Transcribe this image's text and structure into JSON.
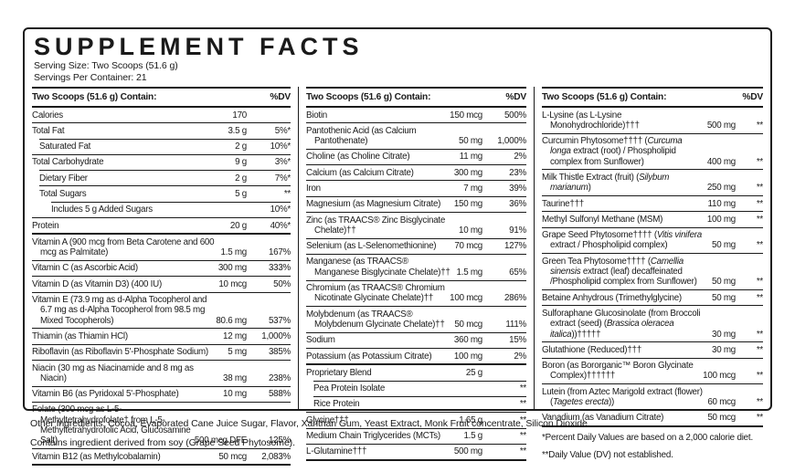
{
  "colors": {
    "ink": "#1a1a1a",
    "background": "#ffffff"
  },
  "header": {
    "title": "SUPPLEMENT FACTS",
    "serving_size": "Serving Size: Two Scoops (51.6 g)",
    "servings_per_container": "Servings Per Container: 21"
  },
  "columns": [
    {
      "header": "Two Scoops (51.6 g) Contain:",
      "dv_header": "%DV",
      "rows": [
        {
          "name": "Calories",
          "amount": "170",
          "dv": ""
        },
        {
          "name": "Total Fat",
          "amount": "3.5 g",
          "dv": "5%*"
        },
        {
          "name": "Saturated Fat",
          "amount": "2 g",
          "dv": "10%*",
          "indent": 1
        },
        {
          "name": "Total Carbohydrate",
          "amount": "9 g",
          "dv": "3%*"
        },
        {
          "name": "Dietary Fiber",
          "amount": "2 g",
          "dv": "7%*",
          "indent": 1
        },
        {
          "name": "Total Sugars",
          "amount": "5 g",
          "dv": "**",
          "indent": 1
        },
        {
          "name": "Includes 5 g Added Sugars",
          "amount": "",
          "dv": "10%*",
          "indent": 2
        },
        {
          "name": "Protein",
          "amount": "20 g",
          "dv": "40%*"
        },
        {
          "name": "Vitamin A (900 mcg from Beta Carotene and 600 mcg as Palmitate)",
          "amount": "1.5 mg",
          "dv": "167%",
          "sep": "thick"
        },
        {
          "name": "Vitamin C (as Ascorbic Acid)",
          "amount": "300 mg",
          "dv": "333%"
        },
        {
          "name": "Vitamin D (as Vitamin D3) (400 IU)",
          "amount": "10 mcg",
          "dv": "50%"
        },
        {
          "name": "Vitamin E (73.9 mg as d-Alpha Tocopherol and 6.7 mg as d-Alpha Tocopherol from 98.5 mg Mixed Tocopherols)",
          "amount": "80.6 mg",
          "dv": "537%"
        },
        {
          "name": "Thiamin (as Thiamin HCl)",
          "amount": "12 mg",
          "dv": "1,000%"
        },
        {
          "name": "Riboflavin (as Riboflavin 5'-Phosphate Sodium)",
          "amount": "5 mg",
          "dv": "385%"
        },
        {
          "name": "Niacin (30 mg as Niacinamide and 8 mg as Niacin)",
          "amount": "38 mg",
          "dv": "238%"
        },
        {
          "name": "Vitamin B6 (as Pyridoxal 5'-Phosphate)",
          "amount": "10 mg",
          "dv": "588%"
        },
        {
          "name": "Folate (300 mcg as L-5-Methyltetrahydrofolate† from L-5-Methyltetrahydrofolic Acid, Glucosamine Salt)",
          "amount": "500 mcg DFE",
          "dv": "125%"
        },
        {
          "name": "Vitamin B12 (as Methylcobalamin)",
          "amount": "50 mcg",
          "dv": "2,083%"
        }
      ]
    },
    {
      "header": "Two Scoops (51.6 g) Contain:",
      "dv_header": "%DV",
      "rows": [
        {
          "name": "Biotin",
          "amount": "150 mcg",
          "dv": "500%"
        },
        {
          "name": "Pantothenic Acid (as Calcium Pantothenate)",
          "amount": "50 mg",
          "dv": "1,000%"
        },
        {
          "name": "Choline (as Choline Citrate)",
          "amount": "11 mg",
          "dv": "2%"
        },
        {
          "name": "Calcium (as Calcium Citrate)",
          "amount": "300 mg",
          "dv": "23%"
        },
        {
          "name": "Iron",
          "amount": "7 mg",
          "dv": "39%"
        },
        {
          "name": "Magnesium (as Magnesium Citrate)",
          "amount": "150 mg",
          "dv": "36%"
        },
        {
          "name": "Zinc (as TRAACS® Zinc Bisglycinate Chelate)††",
          "amount": "10 mg",
          "dv": "91%"
        },
        {
          "name": "Selenium (as L-Selenomethionine)",
          "amount": "70 mcg",
          "dv": "127%"
        },
        {
          "name": "Manganese (as TRAACS® Manganese Bisglycinate Chelate)††",
          "amount": "1.5 mg",
          "dv": "65%"
        },
        {
          "name": "Chromium (as TRAACS® Chromium Nicotinate Glycinate Chelate)††",
          "amount": "100 mcg",
          "dv": "286%"
        },
        {
          "name": "Molybdenum (as TRAACS® Molybdenum Glycinate Chelate)††",
          "amount": "50 mcg",
          "dv": "111%"
        },
        {
          "name": "Sodium",
          "amount": "360 mg",
          "dv": "15%"
        },
        {
          "name": "Potassium (as Potassium Citrate)",
          "amount": "100 mg",
          "dv": "2%"
        },
        {
          "name": "Proprietary Blend",
          "amount": "25 g",
          "dv": "",
          "sep": "thick"
        },
        {
          "name": "Pea Protein Isolate",
          "amount": "",
          "dv": "**",
          "indent": 1
        },
        {
          "name": "Rice Protein",
          "amount": "",
          "dv": "**",
          "indent": 1
        },
        {
          "name": "Glycine†††",
          "amount": "1.65 g",
          "dv": "**"
        },
        {
          "name": "Medium Chain Triglycerides (MCTs)",
          "amount": "1.5 g",
          "dv": "**"
        },
        {
          "name": "L-Glutamine†††",
          "amount": "500 mg",
          "dv": "**"
        }
      ]
    },
    {
      "header": "Two Scoops (51.6 g) Contain:",
      "dv_header": "%DV",
      "rows": [
        {
          "name": "L-Lysine (as L-Lysine Monohydrochloride)†††",
          "amount": "500 mg",
          "dv": "**"
        },
        {
          "name": "Curcumin Phytosome†††† (_Curcuma longa_ extract (root) / Phospholipid complex from Sunflower)",
          "amount": "400 mg",
          "dv": "**"
        },
        {
          "name": "Milk Thistle Extract (fruit) (_Silybum marianum_)",
          "amount": "250 mg",
          "dv": "**"
        },
        {
          "name": "Taurine†††",
          "amount": "110 mg",
          "dv": "**"
        },
        {
          "name": "Methyl Sulfonyl Methane (MSM)",
          "amount": "100 mg",
          "dv": "**"
        },
        {
          "name": "Grape Seed Phytosome†††† (_Vitis vinifera_ extract / Phospholipid complex)",
          "amount": "50 mg",
          "dv": "**"
        },
        {
          "name": "Green Tea Phytosome†††† (_Camellia sinensis_ extract (leaf) decaffeinated /Phospholipid complex from Sunflower)",
          "amount": "50 mg",
          "dv": "**"
        },
        {
          "name": "Betaine Anhydrous (Trimethylglycine)",
          "amount": "50 mg",
          "dv": "**"
        },
        {
          "name": "Sulforaphane Glucosinolate (from Broccoli extract (seed) (_Brassica oleracea italica_))†††††",
          "amount": "30 mg",
          "dv": "**"
        },
        {
          "name": "Glutathione (Reduced)†††",
          "amount": "30 mg",
          "dv": "**"
        },
        {
          "name": "Boron (as Bororganic™ Boron Glycinate Complex)††††††",
          "amount": "100 mcg",
          "dv": "**"
        },
        {
          "name": "Lutein (from Aztec Marigold extract (flower) (_Tagetes erecta_))",
          "amount": "60 mcg",
          "dv": "**"
        },
        {
          "name": "Vanadium (as Vanadium Citrate)",
          "amount": "50 mcg",
          "dv": "**"
        }
      ]
    }
  ],
  "footnotes": {
    "dv_basis": "*Percent Daily Values are based on a 2,000 calorie diet.",
    "dv_not_established": "**Daily Value (DV) not established."
  },
  "bottom": {
    "other_ingredients": "Other Ingredients: Cocoa, Evaporated Cane Juice Sugar, Flavor, Xanthan Gum, Yeast Extract, Monk Fruit concentrate, Silicon Dioxide.",
    "allergen": "Contains ingredient derived from soy (Grape Seed Phytosome)."
  }
}
